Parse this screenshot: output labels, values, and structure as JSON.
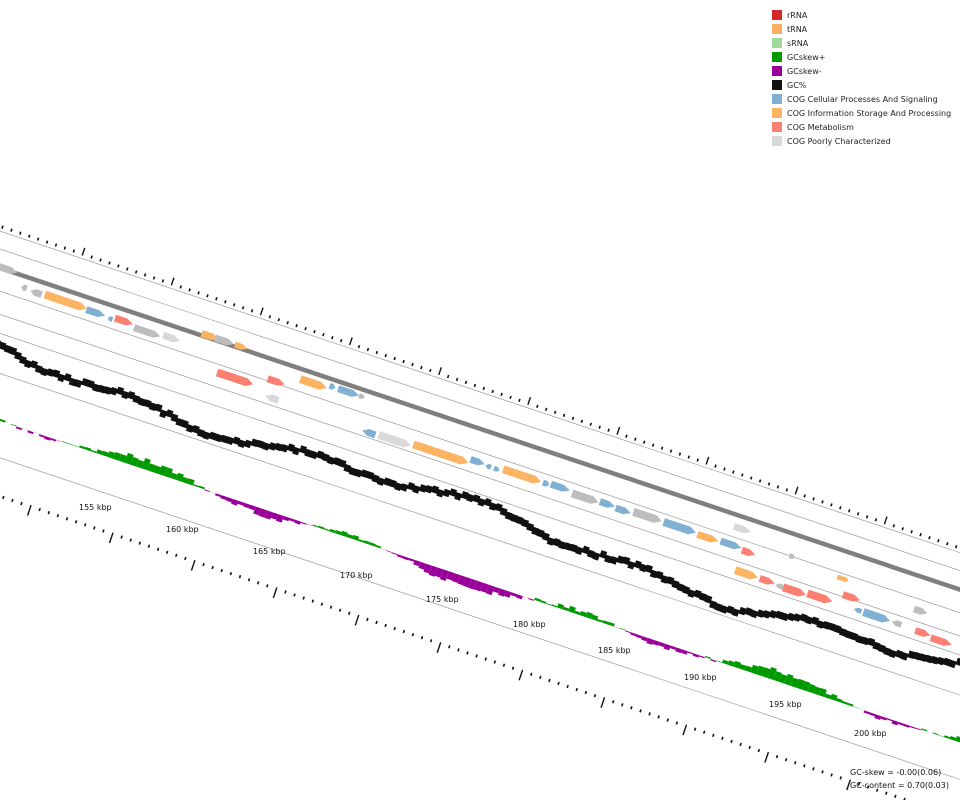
{
  "legend": {
    "items": [
      {
        "label": "rRNA",
        "color": "#d62728"
      },
      {
        "label": "tRNA",
        "color": "#fdae61"
      },
      {
        "label": "sRNA",
        "color": "#a1d99b"
      },
      {
        "label": "GCskew+",
        "color": "#009900"
      },
      {
        "label": "GCskew-",
        "color": "#990099"
      },
      {
        "label": "GC%",
        "color": "#111111"
      },
      {
        "label": "COG Cellular Processes And Signaling",
        "color": "#80b1d3"
      },
      {
        "label": "COG Information Storage And Processing",
        "color": "#fdb462"
      },
      {
        "label": "COG Metabolism",
        "color": "#fb8072"
      },
      {
        "label": "COG Poorly Characterized",
        "color": "#d9d9d9"
      }
    ]
  },
  "axis": {
    "unit": "kbp",
    "ticks": [
      {
        "label": "155 kbp"
      },
      {
        "label": "160 kbp"
      },
      {
        "label": "165 kbp"
      },
      {
        "label": "170 kbp"
      },
      {
        "label": "175 kbp"
      },
      {
        "label": "180 kbp"
      },
      {
        "label": "185 kbp"
      },
      {
        "label": "190 kbp"
      },
      {
        "label": "195 kbp"
      },
      {
        "label": "200 kbp"
      }
    ]
  },
  "stats": {
    "gc_skew": "GC-skew = -0.00(0.06)",
    "gc_content": "GC-content = 0.70(0.03)"
  },
  "colors": {
    "backbone": "#7f7f7f",
    "track_line": "#9a9a9a",
    "gray_gene": "#bdbdbd"
  }
}
